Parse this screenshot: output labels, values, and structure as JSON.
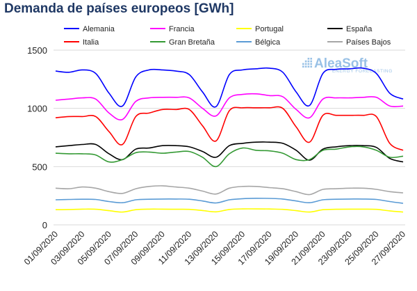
{
  "chart_data": {
    "type": "line",
    "title": "Demanda de países europeos [GWh]",
    "xlabel": "",
    "ylabel": "",
    "ylim": [
      0,
      1500
    ],
    "yticks": [
      0,
      500,
      1000,
      1500
    ],
    "grid": true,
    "legend_position": "top",
    "x_tick_labels": [
      "01/09/2020",
      "03/09/2020",
      "05/09/2020",
      "07/09/2020",
      "09/09/2020",
      "11/09/2020",
      "13/09/2020",
      "15/09/2020",
      "17/09/2020",
      "19/09/2020",
      "21/09/2020",
      "23/09/2020",
      "25/09/2020",
      "27/09/2020"
    ],
    "x": [
      "01/09/2020",
      "02/09/2020",
      "03/09/2020",
      "04/09/2020",
      "05/09/2020",
      "06/09/2020",
      "07/09/2020",
      "08/09/2020",
      "09/09/2020",
      "10/09/2020",
      "11/09/2020",
      "12/09/2020",
      "13/09/2020",
      "14/09/2020",
      "15/09/2020",
      "16/09/2020",
      "17/09/2020",
      "18/09/2020",
      "19/09/2020",
      "20/09/2020",
      "21/09/2020",
      "22/09/2020",
      "23/09/2020",
      "24/09/2020",
      "25/09/2020",
      "26/09/2020",
      "27/09/2020"
    ],
    "series": [
      {
        "name": "Alemania",
        "color": "#0000ff",
        "values": [
          1320,
          1310,
          1330,
          1300,
          1130,
          1020,
          1270,
          1330,
          1330,
          1320,
          1290,
          1140,
          1015,
          1290,
          1330,
          1340,
          1345,
          1310,
          1140,
          1025,
          1300,
          1335,
          1340,
          1345,
          1300,
          1130,
          1080
        ]
      },
      {
        "name": "Francia",
        "color": "#ff00ff",
        "values": [
          1070,
          1080,
          1090,
          1080,
          960,
          905,
          1060,
          1090,
          1095,
          1095,
          1090,
          1000,
          935,
          1090,
          1120,
          1125,
          1110,
          1100,
          990,
          920,
          1080,
          1090,
          1090,
          1095,
          1095,
          1020,
          1020
        ]
      },
      {
        "name": "Portugal",
        "color": "#ffff00",
        "values": [
          130,
          132,
          135,
          134,
          122,
          110,
          130,
          135,
          135,
          134,
          133,
          123,
          112,
          132,
          137,
          137,
          136,
          133,
          122,
          110,
          130,
          134,
          135,
          135,
          133,
          120,
          110
        ]
      },
      {
        "name": "España",
        "color": "#000000",
        "values": [
          670,
          680,
          690,
          690,
          610,
          560,
          650,
          660,
          680,
          680,
          670,
          630,
          580,
          680,
          700,
          710,
          710,
          700,
          640,
          555,
          650,
          670,
          680,
          680,
          665,
          570,
          540
        ]
      },
      {
        "name": "Italia",
        "color": "#ff0000",
        "values": [
          920,
          930,
          930,
          930,
          800,
          690,
          930,
          960,
          990,
          990,
          990,
          850,
          720,
          980,
          1005,
          1005,
          1005,
          1000,
          840,
          710,
          940,
          940,
          940,
          940,
          930,
          700,
          640
        ]
      },
      {
        "name": "Gran Bretaña",
        "color": "#339933",
        "values": [
          615,
          610,
          610,
          600,
          540,
          560,
          620,
          625,
          615,
          625,
          630,
          580,
          500,
          610,
          660,
          640,
          635,
          615,
          560,
          560,
          640,
          650,
          670,
          670,
          640,
          580,
          590
        ]
      },
      {
        "name": "Bélgica",
        "color": "#5a9bd5",
        "values": [
          215,
          218,
          220,
          218,
          200,
          190,
          215,
          220,
          222,
          222,
          220,
          205,
          188,
          215,
          225,
          228,
          227,
          222,
          205,
          190,
          215,
          220,
          222,
          222,
          218,
          200,
          185
        ]
      },
      {
        "name": "Países Bajos",
        "color": "#a6a6a6",
        "values": [
          315,
          310,
          325,
          315,
          285,
          270,
          310,
          330,
          335,
          325,
          315,
          290,
          265,
          315,
          330,
          330,
          320,
          310,
          285,
          260,
          305,
          310,
          315,
          315,
          305,
          285,
          275
        ]
      }
    ]
  },
  "branding": {
    "name": "AleaSoft",
    "tagline": "ENERGY FORECASTING",
    "color": "#6fa8dc"
  }
}
